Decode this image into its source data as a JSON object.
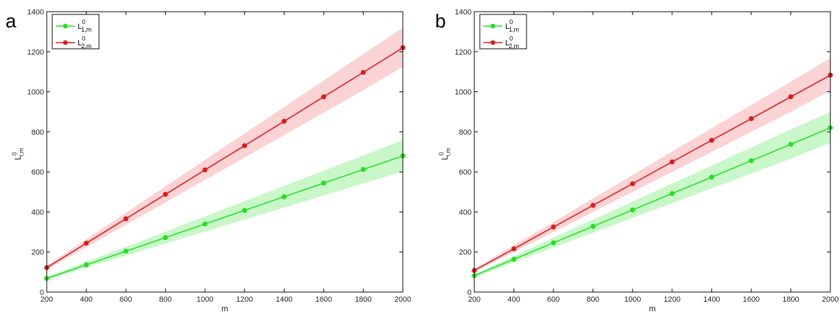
{
  "colors": {
    "green": "#22e022",
    "red": "#e01a1a",
    "green_band": "#c9f7c9",
    "red_band": "#fbd3d5"
  },
  "chart_data": [
    {
      "type": "line",
      "panel_label": "a",
      "xlabel": "m",
      "ylabel": {
        "base": "L",
        "sup": "0",
        "sub": "i,m"
      },
      "xlim": [
        200,
        2000
      ],
      "ylim": [
        0,
        1400
      ],
      "x_ticks": [
        200,
        400,
        600,
        800,
        1000,
        1200,
        1400,
        1600,
        1800,
        2000
      ],
      "y_ticks": [
        0,
        200,
        400,
        600,
        800,
        1000,
        1200,
        1400
      ],
      "legend_position": "top-left",
      "x": [
        200,
        400,
        600,
        800,
        1000,
        1200,
        1400,
        1600,
        1800,
        2000
      ],
      "series": [
        {
          "legend": {
            "base": "L",
            "sup": "0",
            "sub": "1,m"
          },
          "color": "green",
          "values": [
            68,
            136,
            204,
            272,
            340,
            408,
            476,
            544,
            612,
            680
          ],
          "band_lower": [
            62,
            122,
            182,
            242,
            302,
            362,
            422,
            482,
            542,
            602
          ],
          "band_upper": [
            76,
            152,
            226,
            302,
            378,
            454,
            530,
            606,
            682,
            760
          ]
        },
        {
          "legend": {
            "base": "L",
            "sup": "0",
            "sub": "2,m"
          },
          "color": "red",
          "values": [
            122,
            244,
            366,
            488,
            610,
            731,
            853,
            975,
            1097,
            1220
          ],
          "band_lower": [
            112,
            224,
            336,
            448,
            560,
            672,
            784,
            896,
            1008,
            1125
          ],
          "band_upper": [
            132,
            264,
            396,
            528,
            660,
            792,
            924,
            1056,
            1188,
            1320
          ]
        }
      ]
    },
    {
      "type": "line",
      "panel_label": "b",
      "xlabel": "m",
      "ylabel": {
        "base": "L",
        "sup": "0",
        "sub": "i,m"
      },
      "xlim": [
        200,
        2000
      ],
      "ylim": [
        0,
        1400
      ],
      "x_ticks": [
        200,
        400,
        600,
        800,
        1000,
        1200,
        1400,
        1600,
        1800,
        2000
      ],
      "y_ticks": [
        0,
        200,
        400,
        600,
        800,
        1000,
        1200,
        1400
      ],
      "legend_position": "top-left",
      "x": [
        200,
        400,
        600,
        800,
        1000,
        1200,
        1400,
        1600,
        1800,
        2000
      ],
      "series": [
        {
          "legend": {
            "base": "L",
            "sup": "0",
            "sub": "1,m"
          },
          "color": "green",
          "values": [
            82,
            164,
            246,
            328,
            410,
            492,
            574,
            656,
            738,
            820
          ],
          "band_lower": [
            74,
            148,
            222,
            296,
            370,
            444,
            518,
            592,
            666,
            745
          ],
          "band_upper": [
            90,
            180,
            272,
            362,
            452,
            542,
            632,
            722,
            812,
            900
          ]
        },
        {
          "legend": {
            "base": "L",
            "sup": "0",
            "sub": "2,m"
          },
          "color": "red",
          "values": [
            108,
            216,
            325,
            433,
            541,
            650,
            758,
            866,
            975,
            1083
          ],
          "band_lower": [
            100,
            200,
            300,
            400,
            500,
            600,
            700,
            800,
            900,
            1005
          ],
          "band_upper": [
            116,
            234,
            350,
            468,
            584,
            702,
            818,
            934,
            1050,
            1168
          ]
        }
      ]
    }
  ]
}
